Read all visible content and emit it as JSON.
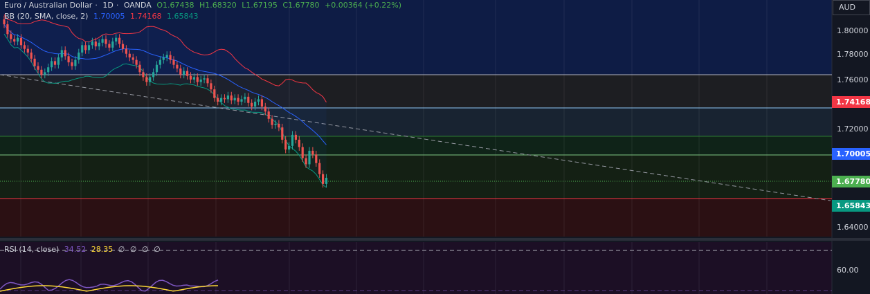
{
  "symbol": {
    "name": "Euro / Australian Dollar",
    "interval": "1D",
    "exchange": "OANDA",
    "separator": "·",
    "open": "O1.67438",
    "high": "H1.68320",
    "low": "L1.67195",
    "close": "C1.67780",
    "change": "+0.00364 (+0.22%)"
  },
  "bb": {
    "label": "BB (20, SMA, close, 2)",
    "basis": "1.70005",
    "upper": "1.74168",
    "lower": "1.65843"
  },
  "rsi": {
    "label": "RSI (14, close)",
    "value": "34.52",
    "ma": "28.35",
    "extras": [
      "∅",
      "∅",
      "∅",
      "∅"
    ],
    "level_label": "60.00"
  },
  "axis": {
    "currency": "AUD",
    "ticks": [
      "1.80000",
      "1.78000",
      "1.76000",
      "1.72000",
      "1.64000"
    ],
    "tags": {
      "upper": "1.74168",
      "basis": "1.70005",
      "last": "1.67780",
      "lower": "1.65843"
    }
  },
  "colors": {
    "background": "#131722",
    "up": "#26a69a",
    "down": "#ef5350",
    "upper_band": "#f23645",
    "basis": "#2962ff",
    "lower_band": "#089981",
    "rsi": "#7e57c2",
    "rsi_ma": "#fdd835",
    "last_price": "#4caf50",
    "text": "#d1d4dc"
  }
}
